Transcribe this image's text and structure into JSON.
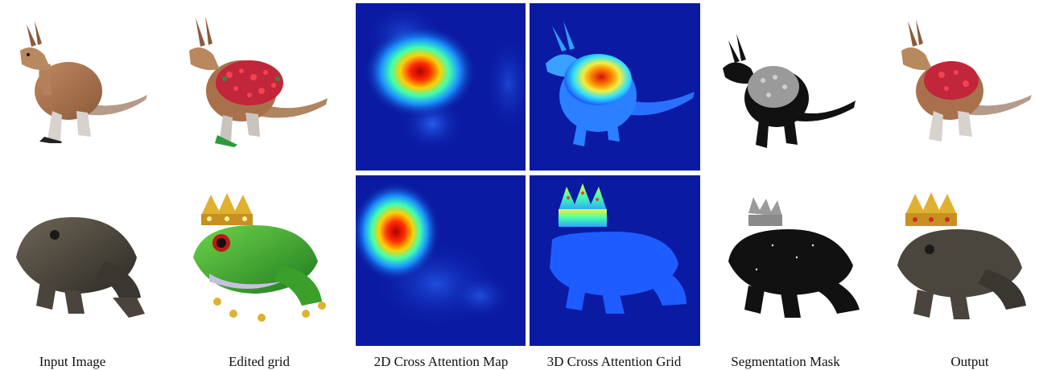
{
  "figure": {
    "captions": {
      "input_image": "Input Image",
      "edited_grid": "Edited grid",
      "cross_attention_2d": "2D Cross Attention Map",
      "cross_attention_3d": "3D Cross Attention Grid",
      "segmentation_mask": "Segmentation Mask",
      "output": "Output"
    },
    "rows": [
      "kangaroo",
      "frog"
    ],
    "colors": {
      "heatmap_background": "#0b1aa3",
      "kangaroo_fur": "#a8714c",
      "frog_skin": "#3c3a34",
      "edited_frog": "#3fae2a",
      "crown_gold": "#e0b030",
      "edit_red": "#d8262e",
      "mask_dark": "#111111",
      "mask_highlight": "#9a9a9a"
    }
  }
}
